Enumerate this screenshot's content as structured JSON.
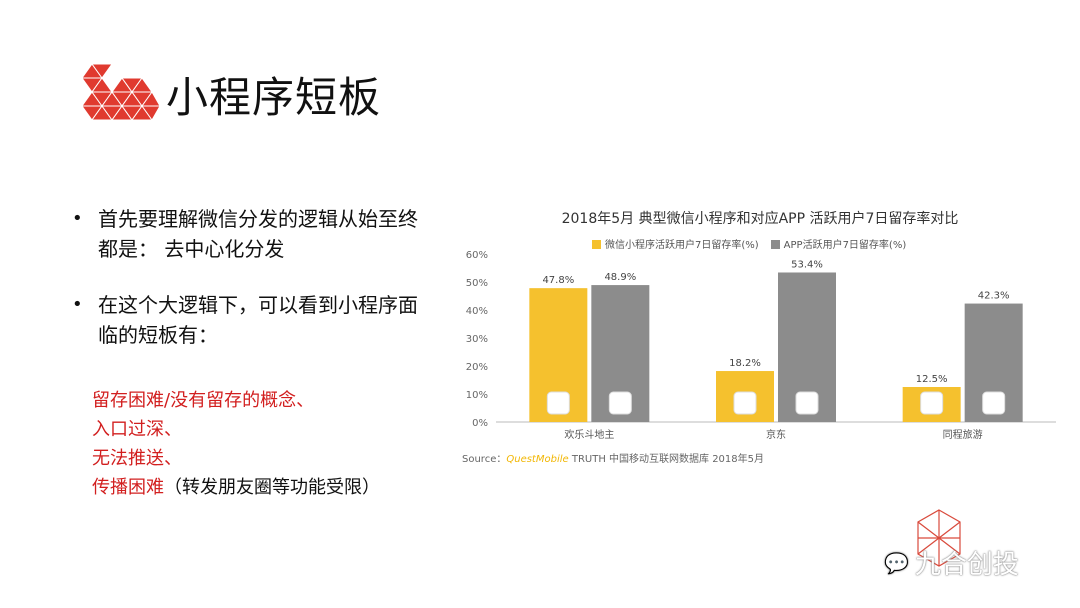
{
  "slide": {
    "title": "小程序短板",
    "bullets": [
      "首先要理解微信分发的逻辑从始至终都是： 去中心化分发",
      "在这个大逻辑下，可以看到小程序面临的短板有："
    ],
    "issues": [
      {
        "text": "留存困难/没有留存的概念、",
        "note": ""
      },
      {
        "text": "入口过深、",
        "note": ""
      },
      {
        "text": "无法推送、",
        "note": ""
      },
      {
        "text": "传播困难",
        "note": "（转发朋友圈等功能受限）"
      }
    ],
    "watermark": "九合创投",
    "colors": {
      "accent": "#e03a2f",
      "issue_text": "#d21f1f"
    }
  },
  "chart_data": {
    "type": "bar",
    "title": "2018年5月 典型微信小程序和对应APP 活跃用户7日留存率对比",
    "categories": [
      "欢乐斗地主",
      "京东",
      "同程旅游"
    ],
    "series": [
      {
        "name": "微信小程序活跃用户7日留存率(%)",
        "values": [
          47.8,
          18.2,
          12.5
        ],
        "color": "#f5c12e",
        "labels": [
          "47.8%",
          "18.2%",
          "12.5%"
        ]
      },
      {
        "name": "APP活跃用户7日留存率(%)",
        "values": [
          48.9,
          53.4,
          42.3
        ],
        "color": "#8c8c8c",
        "labels": [
          "48.9%",
          "53.4%",
          "42.3%"
        ]
      }
    ],
    "ylim": [
      0,
      60
    ],
    "yticks": [
      "0%",
      "10%",
      "20%",
      "30%",
      "40%",
      "50%",
      "60%"
    ],
    "legend": "top",
    "grid": false,
    "source": {
      "prefix": "Source：",
      "brand": "QuestMobile",
      "rest": " TRUTH 中国移动互联网数据库 2018年5月"
    }
  }
}
